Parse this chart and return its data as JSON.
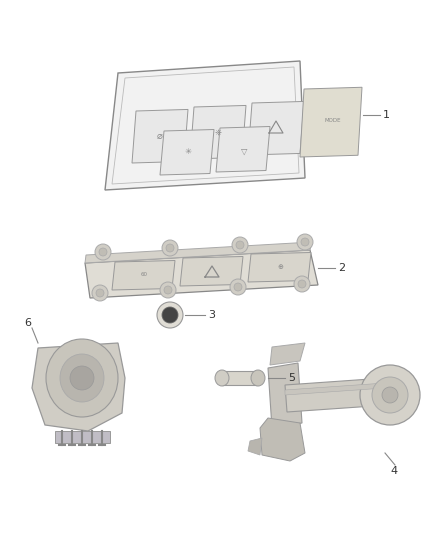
{
  "background_color": "#ffffff",
  "lc": "#aaaaaa",
  "dc": "#888888",
  "fc_light": "#eeeeee",
  "fc_med": "#dddddd",
  "fc_dark": "#cccccc",
  "fig_width": 4.38,
  "fig_height": 5.33,
  "dpi": 100,
  "label_fs": 8,
  "label_color": "#333333",
  "comp1_label": "1",
  "comp2_label": "2",
  "comp3_label": "3",
  "comp4_label": "4",
  "comp5_label": "5",
  "comp6_label": "6"
}
